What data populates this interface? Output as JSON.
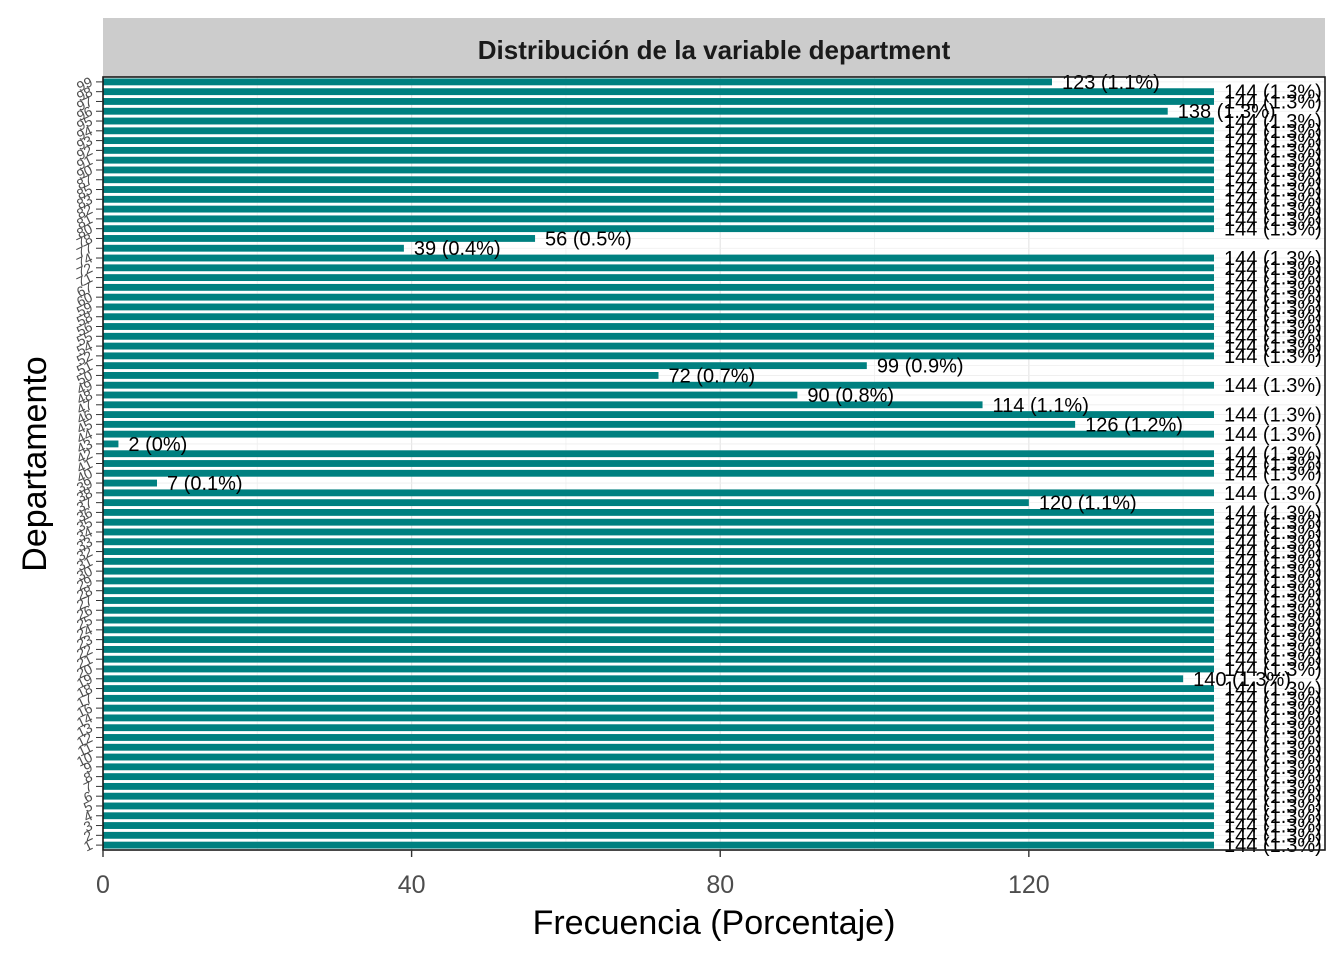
{
  "chart_data": {
    "type": "bar",
    "orientation": "horizontal",
    "title": "Distribución de la variable department",
    "xlabel": "Frecuencia (Porcentaje)",
    "ylabel": "Departamento",
    "xlim": [
      0,
      144
    ],
    "xticks": [
      0,
      40,
      80,
      120
    ],
    "grid": true,
    "bar_color": "#008080",
    "strip_color": "#cccccc",
    "categories": [
      "1",
      "2",
      "3",
      "4",
      "5",
      "6",
      "7",
      "8",
      "9",
      "10",
      "11",
      "12",
      "13",
      "14",
      "16",
      "17",
      "18",
      "19",
      "20",
      "21",
      "22",
      "23",
      "24",
      "25",
      "26",
      "27",
      "28",
      "29",
      "30",
      "31",
      "32",
      "33",
      "34",
      "35",
      "36",
      "37",
      "38",
      "39",
      "40",
      "41",
      "42",
      "43",
      "44",
      "45",
      "46",
      "47",
      "48",
      "49",
      "50",
      "51",
      "52",
      "54",
      "55",
      "56",
      "58",
      "59",
      "60",
      "67",
      "71",
      "72",
      "74",
      "77",
      "78",
      "80",
      "81",
      "82",
      "83",
      "85",
      "87",
      "90",
      "91",
      "92",
      "93",
      "94",
      "95",
      "96",
      "97",
      "98",
      "99"
    ],
    "values": [
      144,
      144,
      144,
      144,
      144,
      144,
      144,
      144,
      144,
      144,
      144,
      144,
      144,
      144,
      144,
      144,
      144,
      140,
      144,
      144,
      144,
      144,
      144,
      144,
      144,
      144,
      144,
      144,
      144,
      144,
      144,
      144,
      144,
      144,
      144,
      120,
      144,
      7,
      144,
      144,
      144,
      2,
      144,
      126,
      144,
      114,
      90,
      144,
      72,
      99,
      144,
      144,
      144,
      144,
      144,
      144,
      144,
      144,
      144,
      144,
      144,
      39,
      56,
      144,
      144,
      144,
      144,
      144,
      144,
      144,
      144,
      144,
      144,
      144,
      144,
      138,
      144,
      144,
      123
    ],
    "labels": [
      "144 (1.3%)",
      "144 (1.3%)",
      "144 (1.3%)",
      "144 (1.3%)",
      "144 (1.3%)",
      "144 (1.3%)",
      "144 (1.3%)",
      "144 (1.3%)",
      "144 (1.3%)",
      "144 (1.3%)",
      "144 (1.3%)",
      "144 (1.3%)",
      "144 (1.3%)",
      "144 (1.3%)",
      "144 (1.3%)",
      "144 (1.3%)",
      "144 (1.3%)",
      "140 (1.3%)",
      "144 (1.3%)",
      "144 (1.3%)",
      "144 (1.3%)",
      "144 (1.3%)",
      "144 (1.3%)",
      "144 (1.3%)",
      "144 (1.3%)",
      "144 (1.3%)",
      "144 (1.3%)",
      "144 (1.3%)",
      "144 (1.3%)",
      "144 (1.3%)",
      "144 (1.3%)",
      "144 (1.3%)",
      "144 (1.3%)",
      "144 (1.3%)",
      "144 (1.3%)",
      "120 (1.1%)",
      "144 (1.3%)",
      "7 (0.1%)",
      "144 (1.3%)",
      "144 (1.3%)",
      "144 (1.3%)",
      "2 (0%)",
      "144 (1.3%)",
      "126 (1.2%)",
      "144 (1.3%)",
      "114 (1.1%)",
      "90 (0.8%)",
      "144 (1.3%)",
      "72 (0.7%)",
      "99 (0.9%)",
      "144 (1.3%)",
      "144 (1.3%)",
      "144 (1.3%)",
      "144 (1.3%)",
      "144 (1.3%)",
      "144 (1.3%)",
      "144 (1.3%)",
      "144 (1.3%)",
      "144 (1.3%)",
      "144 (1.3%)",
      "144 (1.3%)",
      "39 (0.4%)",
      "56 (0.5%)",
      "144 (1.3%)",
      "144 (1.3%)",
      "144 (1.3%)",
      "144 (1.3%)",
      "144 (1.3%)",
      "144 (1.3%)",
      "144 (1.3%)",
      "144 (1.3%)",
      "144 (1.3%)",
      "144 (1.3%)",
      "144 (1.3%)",
      "144 (1.3%)",
      "138 (1.3%)",
      "144 (1.3%)",
      "144 (1.3%)",
      "123 (1.1%)"
    ]
  }
}
